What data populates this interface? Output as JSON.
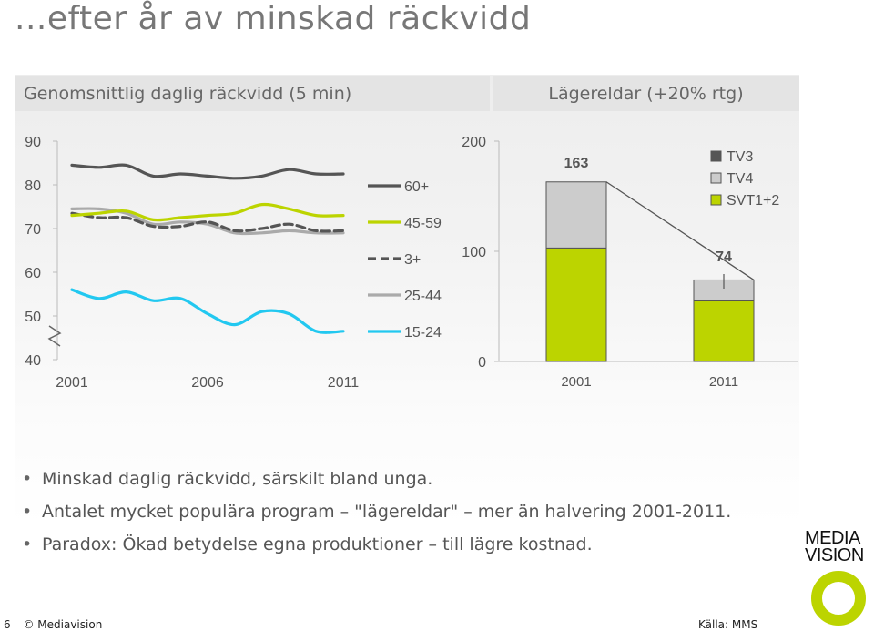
{
  "title": "...efter år av minskad räckvidd",
  "left_header": "Genomsnittlig daglig räckvidd (5 min)",
  "right_header": "Lägereldar (+20% rtg)",
  "bullets": [
    "Minskad daglig räckvidd, särskilt bland unga.",
    "Antalet mycket populära program – \"lägereldar\" – mer än halvering 2001-2011.",
    "Paradox: Ökad betydelse egna produktioner – till lägre kostnad."
  ],
  "footer": {
    "page": "6",
    "copyright": "© Mediavision",
    "source": "Källa: MMS"
  },
  "logo": {
    "line1": "MEDIA",
    "line2": "VISION"
  },
  "colors": {
    "lime": "#bcd400",
    "dark": "#555555",
    "gray": "#aaaaaa",
    "cyan": "#22c8f0",
    "tv4": "#cccccc"
  },
  "chart_data": [
    {
      "type": "line",
      "x": [
        2001,
        2002,
        2003,
        2004,
        2005,
        2006,
        2007,
        2008,
        2009,
        2010,
        2011
      ],
      "xticks": [
        "2001",
        "2006",
        "2011"
      ],
      "yticks": [
        "90",
        "80",
        "70",
        "60",
        "50",
        "40"
      ],
      "ylim": [
        40,
        90
      ],
      "series": [
        {
          "name": "60+",
          "color": "#555555",
          "dash": "solid",
          "values": [
            84.5,
            84,
            84.5,
            82,
            82.5,
            82,
            81.5,
            82,
            83.5,
            82.5,
            82.5
          ]
        },
        {
          "name": "45-59",
          "color": "#bcd400",
          "dash": "solid",
          "values": [
            73,
            73.5,
            74,
            72,
            72.5,
            73,
            73.5,
            75.5,
            74.5,
            73,
            73
          ]
        },
        {
          "name": "3+",
          "color": "#555555",
          "dash": "dashed",
          "values": [
            73.5,
            72.5,
            72.5,
            70.5,
            70.5,
            71.5,
            69.5,
            70,
            71,
            69.5,
            69.5
          ]
        },
        {
          "name": "25-44",
          "color": "#aaaaaa",
          "dash": "solid",
          "values": [
            74.5,
            74.5,
            73.5,
            71,
            71.5,
            71,
            69,
            69,
            69.5,
            69,
            69
          ]
        },
        {
          "name": "15-24",
          "color": "#22c8f0",
          "dash": "solid",
          "values": [
            56,
            54,
            55.5,
            53.5,
            54,
            50.5,
            48,
            51,
            50.5,
            46.5,
            46.5
          ]
        }
      ]
    },
    {
      "type": "bar",
      "stacked": true,
      "categories": [
        "2001",
        "2011"
      ],
      "yticks": [
        "200",
        "100",
        "0"
      ],
      "ylim": [
        0,
        200
      ],
      "totals": [
        "163",
        "74"
      ],
      "series": [
        {
          "name": "TV3",
          "color": "#555555",
          "values": [
            0,
            0
          ]
        },
        {
          "name": "TV4",
          "color": "#cccccc",
          "values": [
            60,
            19
          ]
        },
        {
          "name": "SVT1+2",
          "color": "#bcd400",
          "values": [
            103,
            55
          ]
        }
      ]
    }
  ]
}
